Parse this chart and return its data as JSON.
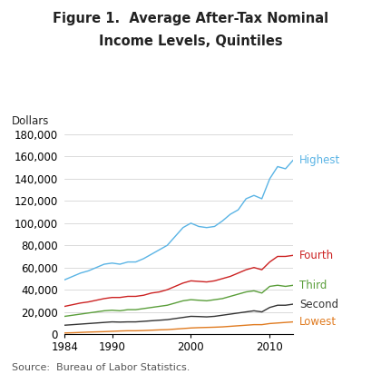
{
  "title_line1": "Figure 1.  Average After-Tax Nominal",
  "title_line2": "Income Levels, Quintiles",
  "ylabel": "Dollars",
  "source": "Source:  Bureau of Labor Statistics.",
  "xlim": [
    1984,
    2013
  ],
  "ylim": [
    0,
    180000
  ],
  "yticks": [
    0,
    20000,
    40000,
    60000,
    80000,
    100000,
    120000,
    140000,
    160000,
    180000
  ],
  "xticks": [
    1984,
    1990,
    2000,
    2010
  ],
  "background_color": "#ffffff",
  "series": {
    "Highest": {
      "color": "#5ab4e5",
      "label_color": "#5ab4e5",
      "years": [
        1984,
        1985,
        1986,
        1987,
        1988,
        1989,
        1990,
        1991,
        1992,
        1993,
        1994,
        1995,
        1996,
        1997,
        1998,
        1999,
        2000,
        2001,
        2002,
        2003,
        2004,
        2005,
        2006,
        2007,
        2008,
        2009,
        2010,
        2011,
        2012,
        2013
      ],
      "values": [
        49000,
        52000,
        55000,
        57000,
        60000,
        63000,
        64000,
        63000,
        65000,
        65000,
        68000,
        72000,
        76000,
        80000,
        88000,
        96000,
        100000,
        97000,
        96000,
        97000,
        102000,
        108000,
        112000,
        122000,
        125000,
        122000,
        140000,
        151000,
        149000,
        157000
      ]
    },
    "Fourth": {
      "color": "#cc2222",
      "label_color": "#cc2222",
      "years": [
        1984,
        1985,
        1986,
        1987,
        1988,
        1989,
        1990,
        1991,
        1992,
        1993,
        1994,
        1995,
        1996,
        1997,
        1998,
        1999,
        2000,
        2001,
        2002,
        2003,
        2004,
        2005,
        2006,
        2007,
        2008,
        2009,
        2010,
        2011,
        2012,
        2013
      ],
      "values": [
        25000,
        26500,
        28000,
        29000,
        30500,
        32000,
        33000,
        33000,
        34000,
        34000,
        35000,
        37000,
        38000,
        40000,
        43000,
        46000,
        48000,
        47500,
        47000,
        48000,
        50000,
        52000,
        55000,
        58000,
        60000,
        58000,
        65000,
        70000,
        70000,
        71000
      ]
    },
    "Third": {
      "color": "#5a9e3a",
      "label_color": "#5a9e3a",
      "years": [
        1984,
        1985,
        1986,
        1987,
        1988,
        1989,
        1990,
        1991,
        1992,
        1993,
        1994,
        1995,
        1996,
        1997,
        1998,
        1999,
        2000,
        2001,
        2002,
        2003,
        2004,
        2005,
        2006,
        2007,
        2008,
        2009,
        2010,
        2011,
        2012,
        2013
      ],
      "values": [
        16000,
        17000,
        18000,
        19000,
        20000,
        21000,
        21500,
        21000,
        22000,
        22000,
        23000,
        24000,
        25000,
        26000,
        28000,
        30000,
        31000,
        30500,
        30000,
        31000,
        32000,
        34000,
        36000,
        38000,
        39000,
        37000,
        43000,
        44000,
        43000,
        44000
      ]
    },
    "Second": {
      "color": "#333333",
      "label_color": "#333333",
      "years": [
        1984,
        1985,
        1986,
        1987,
        1988,
        1989,
        1990,
        1991,
        1992,
        1993,
        1994,
        1995,
        1996,
        1997,
        1998,
        1999,
        2000,
        2001,
        2002,
        2003,
        2004,
        2005,
        2006,
        2007,
        2008,
        2009,
        2010,
        2011,
        2012,
        2013
      ],
      "values": [
        8000,
        8500,
        9000,
        9500,
        10000,
        10500,
        11000,
        10800,
        11000,
        11000,
        11500,
        12000,
        12500,
        13000,
        14000,
        15000,
        16000,
        15800,
        15500,
        16000,
        17000,
        18000,
        19000,
        20000,
        21000,
        20000,
        24000,
        26000,
        26000,
        27000
      ]
    },
    "Lowest": {
      "color": "#e07b20",
      "label_color": "#e07b20",
      "years": [
        1984,
        1985,
        1986,
        1987,
        1988,
        1989,
        1990,
        1991,
        1992,
        1993,
        1994,
        1995,
        1996,
        1997,
        1998,
        1999,
        2000,
        2001,
        2002,
        2003,
        2004,
        2005,
        2006,
        2007,
        2008,
        2009,
        2010,
        2011,
        2012,
        2013
      ],
      "values": [
        1000,
        1200,
        1500,
        1800,
        2000,
        2200,
        2500,
        2800,
        3000,
        3000,
        3200,
        3500,
        3800,
        4000,
        4500,
        5000,
        5500,
        5800,
        6000,
        6200,
        6500,
        7000,
        7500,
        8000,
        8500,
        8500,
        9500,
        10000,
        10500,
        11000
      ]
    }
  },
  "label_positions": {
    "Highest": {
      "y": 157000
    },
    "Fourth": {
      "y": 71000
    },
    "Third": {
      "y": 44000
    },
    "Second": {
      "y": 27000
    },
    "Lowest": {
      "y": 11000
    }
  }
}
